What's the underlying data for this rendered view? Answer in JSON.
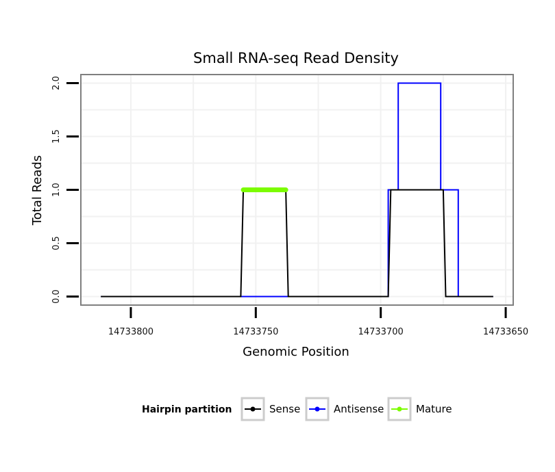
{
  "chart_data": {
    "type": "line",
    "title": "Small RNA-seq Read Density",
    "xlabel": "Genomic Position",
    "ylabel": "Total Reads",
    "x_reversed": true,
    "xlim": [
      14733820,
      14733647
    ],
    "ylim": [
      -0.08,
      2.08
    ],
    "x_ticks": [
      14733800,
      14733750,
      14733700,
      14733650
    ],
    "x_tick_labels": [
      "14733800",
      "14733750",
      "14733700",
      "14733650"
    ],
    "y_ticks": [
      0,
      0.5,
      1,
      1.5,
      2
    ],
    "y_tick_labels": [
      "0.0",
      "0.5",
      "1.0",
      "1.5",
      "2.0"
    ],
    "grid": true,
    "legend": {
      "position": "bottom",
      "title": "Hairpin partition",
      "entries": [
        "Sense",
        "Antisense",
        "Mature"
      ]
    },
    "series": [
      {
        "name": "Antisense",
        "color": "#0000ff",
        "x": [
          14733812,
          14733744,
          14733744,
          14733725,
          14733725,
          14733697,
          14733697,
          14733693,
          14733693,
          14733676,
          14733676,
          14733669,
          14733669,
          14733655
        ],
        "y": [
          0,
          0,
          0,
          0,
          0,
          0,
          1,
          1,
          2,
          2,
          1,
          1,
          0,
          0
        ]
      },
      {
        "name": "Sense",
        "color": "#000000",
        "x": [
          14733812,
          14733756,
          14733755,
          14733738,
          14733737,
          14733697,
          14733696,
          14733675,
          14733674,
          14733655
        ],
        "y": [
          0,
          0,
          1,
          1,
          0,
          0,
          1,
          1,
          0,
          0
        ]
      },
      {
        "name": "Mature",
        "color": "#7cfc00",
        "x": [
          14733755,
          14733738
        ],
        "y": [
          1,
          1
        ]
      }
    ]
  }
}
